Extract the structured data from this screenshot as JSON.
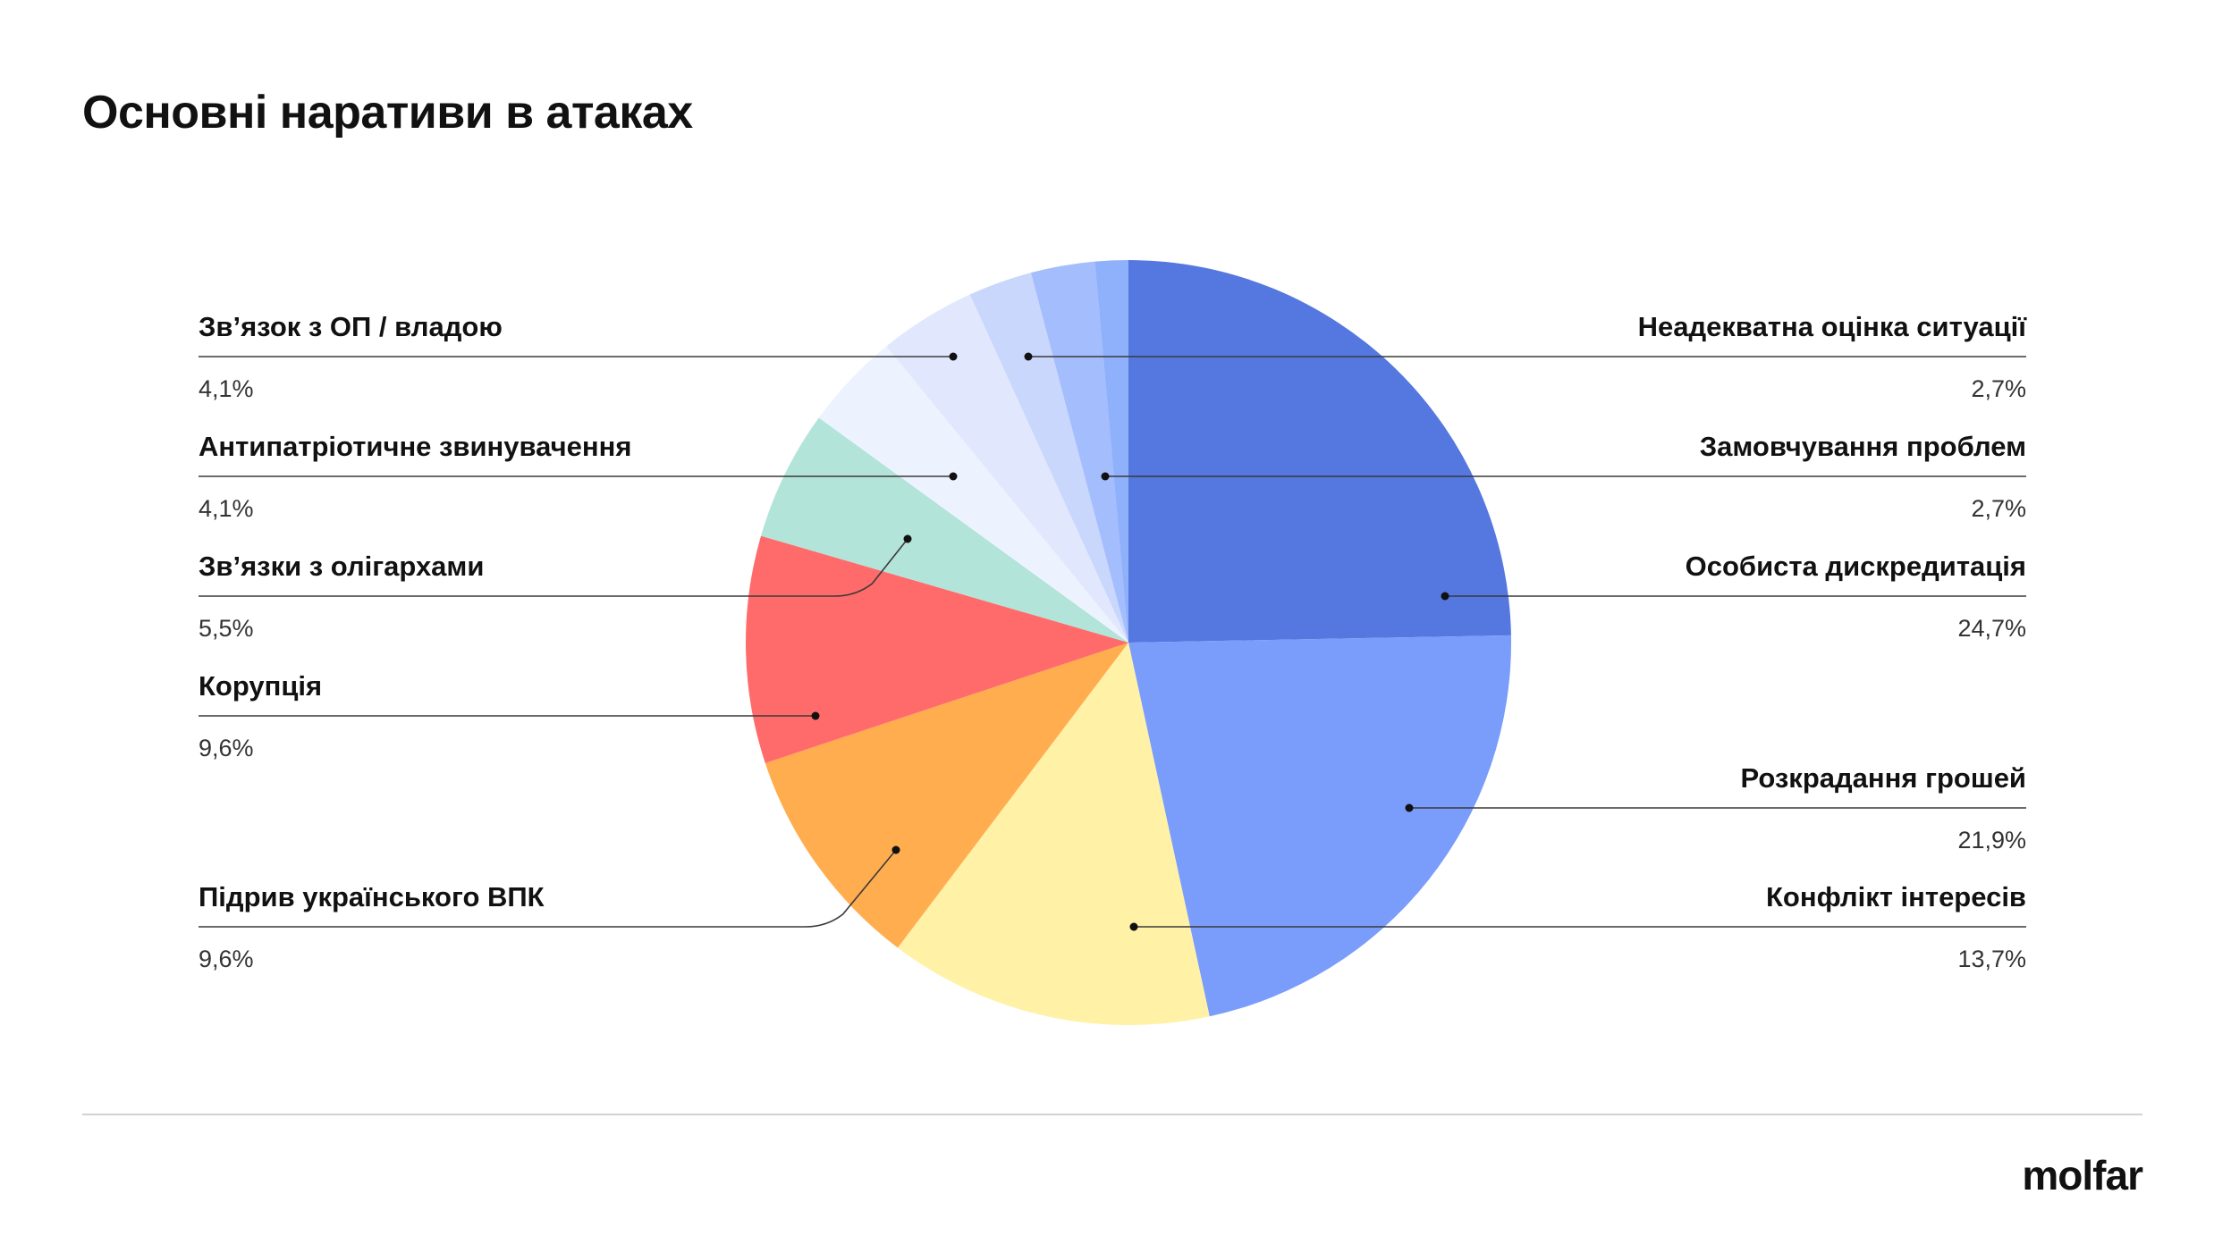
{
  "chart_data": {
    "type": "pie",
    "title": "Основні наративи в атаках",
    "start_angle_deg": 0,
    "direction": "clockwise",
    "slices": [
      {
        "label": "Особиста дискредитація",
        "value": 24.7,
        "display": "24,7%",
        "color": "#5577e0",
        "side": "right"
      },
      {
        "label": "Розкрадання грошей",
        "value": 21.9,
        "display": "21,9%",
        "color": "#7a9dfb",
        "side": "right"
      },
      {
        "label": "Конфлікт інтересів",
        "value": 13.7,
        "display": "13,7%",
        "color": "#fff1a6",
        "side": "right"
      },
      {
        "label": "Підрив українського ВПК",
        "value": 9.6,
        "display": "9,6%",
        "color": "#ffad4f",
        "side": "left"
      },
      {
        "label": "Корупція",
        "value": 9.6,
        "display": "9,6%",
        "color": "#ff6b6b",
        "side": "left"
      },
      {
        "label": "Зв’язки з олігархами",
        "value": 5.5,
        "display": "5,5%",
        "color": "#b3e4da",
        "side": "left"
      },
      {
        "label": "Антипатріотичне звинувачення",
        "value": 4.1,
        "display": "4,1%",
        "color": "#edf2ff",
        "side": "left"
      },
      {
        "label": "Зв’язок з ОП / владою",
        "value": 4.1,
        "display": "4,1%",
        "color": "#e1e8fe",
        "side": "left"
      },
      {
        "label": "Неадекватна оцінка ситуації",
        "value": 2.7,
        "display": "2,7%",
        "color": "#c9d7fd",
        "side": "right"
      },
      {
        "label": "Замовчування проблем",
        "value": 2.7,
        "display": "2,7%",
        "color": "#a4bdfc",
        "side": "right"
      },
      {
        "label": "",
        "value": 1.4,
        "display": "",
        "color": "#8fb0fb",
        "side": "none"
      }
    ],
    "legend": "callouts"
  },
  "brand": {
    "logo_text": "molfar"
  }
}
